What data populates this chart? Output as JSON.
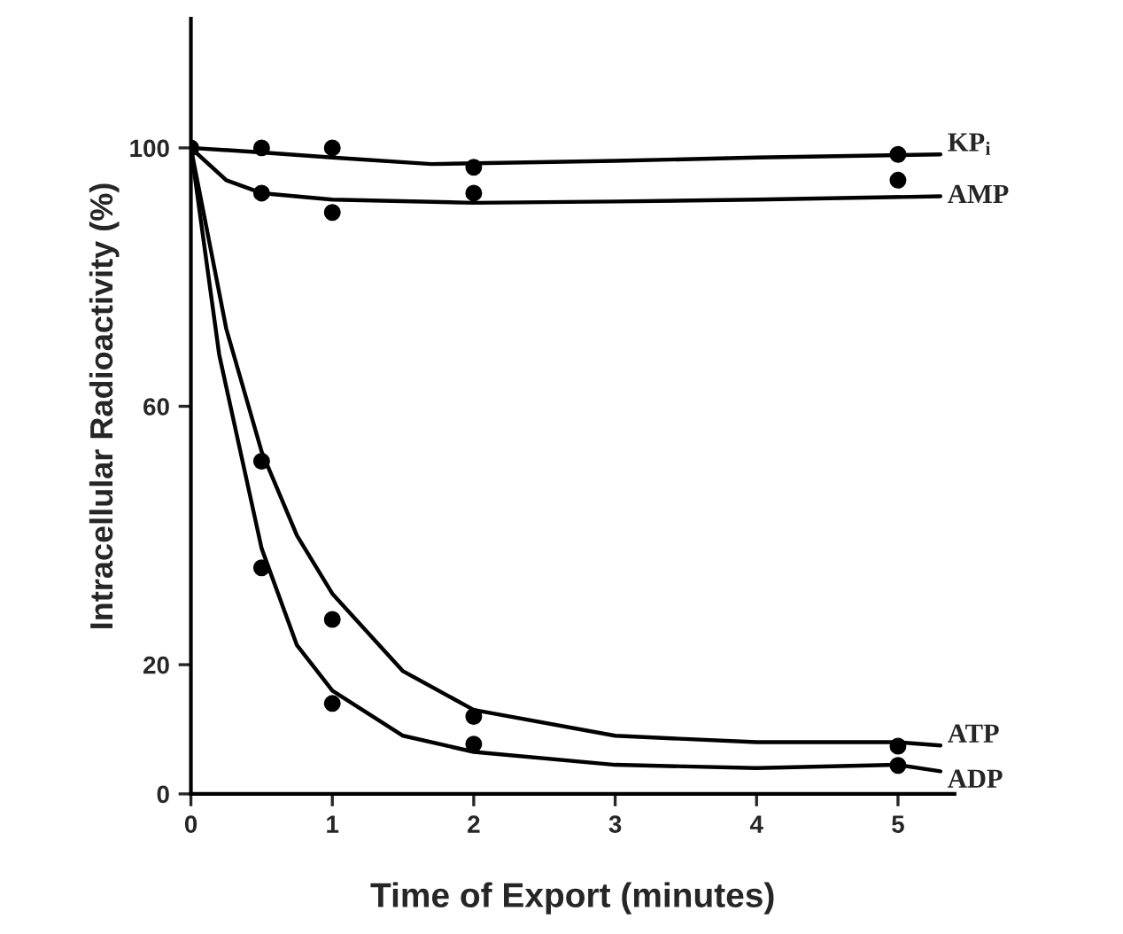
{
  "chart_data": {
    "type": "line",
    "xlabel": "Time of Export (minutes)",
    "ylabel": "Intracellular Radioactivity (%)",
    "xlim": [
      0,
      5.4
    ],
    "xticks": [
      0,
      1,
      2,
      3,
      4,
      5
    ],
    "ylim": [
      0,
      120
    ],
    "yticks": [
      0,
      20,
      60,
      100
    ],
    "grid": false,
    "legend": false,
    "series": [
      {
        "type": "scatter",
        "color": "#000000",
        "marker": "circle",
        "x": [
          0,
          0.5,
          1,
          2,
          5
        ],
        "values": [
          100,
          100,
          100,
          97,
          99
        ]
      },
      {
        "type": "scatter",
        "color": "#000000",
        "marker": "circle",
        "x": [
          0.5,
          1,
          2,
          5
        ],
        "values": [
          93,
          90,
          93,
          95
        ]
      },
      {
        "type": "scatter",
        "color": "#000000",
        "marker": "circle",
        "x": [
          0.5,
          1,
          2,
          5
        ],
        "values": [
          51.5,
          27,
          12,
          7.4
        ]
      },
      {
        "type": "scatter",
        "color": "#000000",
        "marker": "circle",
        "x": [
          0.5,
          1,
          2,
          5
        ],
        "values": [
          35,
          14,
          7.7,
          4.4
        ]
      },
      {
        "name": "KP$_{i}$",
        "color": "#000000",
        "x": [
          0,
          0.5,
          1,
          1.7,
          3,
          4,
          5.3
        ],
        "values": [
          100,
          99.3,
          98.5,
          97.5,
          98,
          98.5,
          99
        ]
      },
      {
        "name": "AMP",
        "color": "#000000",
        "x": [
          0,
          0.25,
          0.5,
          1,
          2,
          3,
          4,
          5.3
        ],
        "values": [
          100,
          95,
          93,
          92,
          91.5,
          91.7,
          92,
          92.5
        ]
      },
      {
        "name": "ATP",
        "color": "#000000",
        "x": [
          0,
          0.25,
          0.5,
          0.75,
          1,
          1.5,
          2,
          3,
          4,
          5,
          5.3
        ],
        "values": [
          100,
          72,
          53,
          40,
          31,
          19,
          13,
          9,
          8,
          8,
          7.5
        ]
      },
      {
        "name": "ADP",
        "color": "#000000",
        "x": [
          0,
          0.2,
          0.5,
          0.75,
          1,
          1.5,
          2,
          3,
          4,
          5,
          5.3
        ],
        "values": [
          100,
          68,
          38,
          23,
          16,
          9,
          6.5,
          4.5,
          4,
          4.5,
          3.5
        ]
      }
    ]
  }
}
